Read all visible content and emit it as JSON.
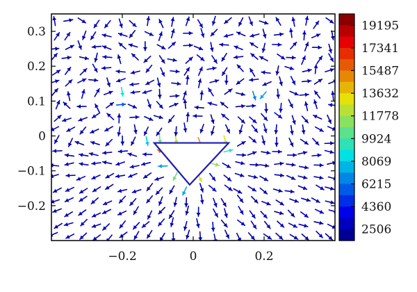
{
  "chart_data": {
    "type": "quiver",
    "title": "",
    "xlabel": "",
    "ylabel": "",
    "xlim": [
      -0.4,
      0.4
    ],
    "ylim": [
      -0.3,
      0.35
    ],
    "xticks": [
      -0.2,
      0,
      0.2
    ],
    "xtick_labels": [
      "−0.2",
      "0",
      "0.2"
    ],
    "yticks": [
      -0.2,
      -0.1,
      0,
      0.1,
      0.2,
      0.3
    ],
    "ytick_labels": [
      "−0.2",
      "−0.1",
      "0",
      "0.1",
      "0.2",
      "0.3"
    ],
    "grid": false,
    "obstacle": {
      "shape": "triangle",
      "vertices": [
        [
          -0.11,
          -0.02
        ],
        [
          0.1,
          -0.02
        ],
        [
          -0.01,
          -0.14
        ]
      ]
    },
    "colorbar": {
      "position": "right",
      "colormap": "jet",
      "min": 1580,
      "max": 20120,
      "labels": [
        "19195",
        "17341",
        "15487",
        "13632",
        "11778",
        "9924",
        "8069",
        "6215",
        "4360",
        "2506"
      ],
      "label_values": [
        19195,
        17341,
        15487,
        13632,
        11778,
        9924,
        8069,
        6215,
        4360,
        2506
      ],
      "band_count": 20
    },
    "colors": {
      "low": "#1010d0",
      "high": "#e00000"
    }
  }
}
